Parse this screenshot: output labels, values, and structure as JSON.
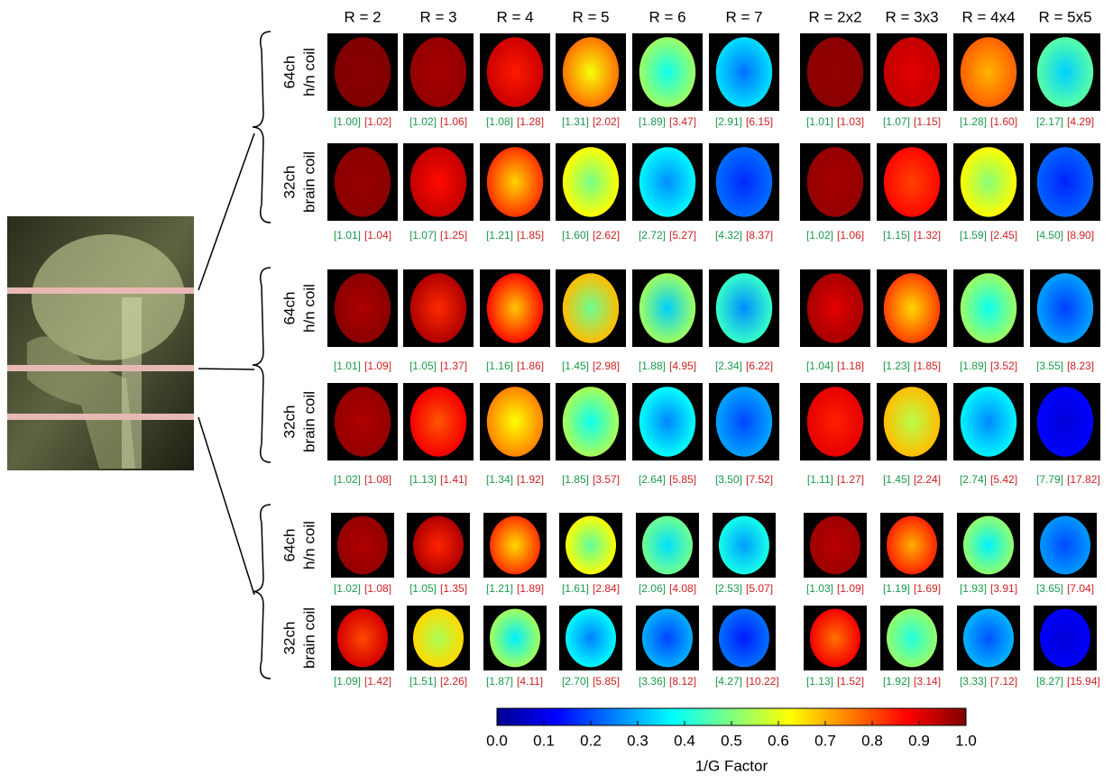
{
  "columns": [
    "R = 2",
    "R = 3",
    "R = 4",
    "R = 5",
    "R = 6",
    "R = 7",
    "R = 2x2",
    "R = 3x3",
    "R = 4x4",
    "R = 5x5"
  ],
  "slices": [
    {
      "rows": [
        {
          "coil": [
            "64ch",
            "h/n coil"
          ],
          "cells": [
            [
              "[1.00]",
              "[1.02]"
            ],
            [
              "[1.02]",
              "[1.06]"
            ],
            [
              "[1.08]",
              "[1.28]"
            ],
            [
              "[1.31]",
              "[2.02]"
            ],
            [
              "[1.89]",
              "[3.47]"
            ],
            [
              "[2.91]",
              "[6.15]"
            ],
            [
              "[1.01]",
              "[1.03]"
            ],
            [
              "[1.07]",
              "[1.15]"
            ],
            [
              "[1.28]",
              "[1.60]"
            ],
            [
              "[2.17]",
              "[4.29]"
            ]
          ]
        },
        {
          "coil": [
            "32ch",
            "brain coil"
          ],
          "cells": [
            [
              "[1.01]",
              "[1.04]"
            ],
            [
              "[1.07]",
              "[1.25]"
            ],
            [
              "[1.21]",
              "[1.85]"
            ],
            [
              "[1.60]",
              "[2.62]"
            ],
            [
              "[2.72]",
              "[5.27]"
            ],
            [
              "[4.32]",
              "[8.37]"
            ],
            [
              "[1.02]",
              "[1.06]"
            ],
            [
              "[1.15]",
              "[1.32]"
            ],
            [
              "[1.59]",
              "[2.45]"
            ],
            [
              "[4.50]",
              "[8.90]"
            ]
          ]
        }
      ]
    },
    {
      "rows": [
        {
          "coil": [
            "64ch",
            "h/n coil"
          ],
          "cells": [
            [
              "[1.01]",
              "[1.09]"
            ],
            [
              "[1.05]",
              "[1.37]"
            ],
            [
              "[1.16]",
              "[1.86]"
            ],
            [
              "[1.45]",
              "[2.98]"
            ],
            [
              "[1.88]",
              "[4.95]"
            ],
            [
              "[2.34]",
              "[6.22]"
            ],
            [
              "[1.04]",
              "[1.18]"
            ],
            [
              "[1.23]",
              "[1.85]"
            ],
            [
              "[1.89]",
              "[3.52]"
            ],
            [
              "[3.55]",
              "[8.23]"
            ]
          ]
        },
        {
          "coil": [
            "32ch",
            "brain coil"
          ],
          "cells": [
            [
              "[1.02]",
              "[1.08]"
            ],
            [
              "[1.13]",
              "[1.41]"
            ],
            [
              "[1.34]",
              "[1.92]"
            ],
            [
              "[1.85]",
              "[3.57]"
            ],
            [
              "[2.64]",
              "[5.85]"
            ],
            [
              "[3.50]",
              "[7.52]"
            ],
            [
              "[1.11]",
              "[1.27]"
            ],
            [
              "[1.45]",
              "[2.24]"
            ],
            [
              "[2.74]",
              "[5.42]"
            ],
            [
              "[7.79]",
              "[17.82]"
            ]
          ]
        }
      ]
    },
    {
      "rows": [
        {
          "coil": [
            "64ch",
            "h/n coil"
          ],
          "cells": [
            [
              "[1.02]",
              "[1.08]"
            ],
            [
              "[1.05]",
              "[1.35]"
            ],
            [
              "[1.21]",
              "[1.89]"
            ],
            [
              "[1.61]",
              "[2.84]"
            ],
            [
              "[2.06]",
              "[4.08]"
            ],
            [
              "[2.53]",
              "[5.07]"
            ],
            [
              "[1.03]",
              "[1.09]"
            ],
            [
              "[1.19]",
              "[1.69]"
            ],
            [
              "[1.93]",
              "[3.91]"
            ],
            [
              "[3.65]",
              "[7.04]"
            ]
          ]
        },
        {
          "coil": [
            "32ch",
            "brain coil"
          ],
          "cells": [
            [
              "[1.09]",
              "[1.42]"
            ],
            [
              "[1.51]",
              "[2.26]"
            ],
            [
              "[1.87]",
              "[4.11]"
            ],
            [
              "[2.70]",
              "[5.85]"
            ],
            [
              "[3.36]",
              "[8.12]"
            ],
            [
              "[4.27]",
              "[10.22]"
            ],
            [
              "[1.13]",
              "[1.52]"
            ],
            [
              "[1.92]",
              "[3.14]"
            ],
            [
              "[3.33]",
              "[7.12]"
            ],
            [
              "[8.27]",
              "[15.94]"
            ]
          ]
        }
      ]
    }
  ],
  "colorbar": {
    "ticks": [
      "0.0",
      "0.1",
      "0.2",
      "0.3",
      "0.4",
      "0.5",
      "0.6",
      "0.7",
      "0.8",
      "0.9",
      "1.0"
    ],
    "title": "1/G Factor"
  }
}
